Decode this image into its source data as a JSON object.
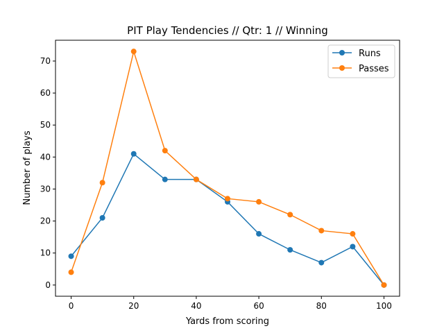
{
  "chart_data": {
    "type": "line",
    "title": "PIT Play Tendencies // Qtr: 1 // Winning",
    "xlabel": "Yards from scoring",
    "ylabel": "Number of plays",
    "x": [
      0,
      10,
      20,
      30,
      40,
      50,
      60,
      70,
      80,
      90,
      100
    ],
    "xlim": [
      -5,
      105
    ],
    "ylim": [
      -3.5,
      76.5
    ],
    "xticks": [
      0,
      20,
      40,
      60,
      80,
      100
    ],
    "yticks": [
      0,
      10,
      20,
      30,
      40,
      50,
      60,
      70
    ],
    "grid": false,
    "legend_position": "top-right",
    "series": [
      {
        "name": "Runs",
        "color": "#1f77b4",
        "marker": "circle",
        "values": [
          9,
          21,
          41,
          33,
          33,
          26,
          16,
          11,
          7,
          12,
          0
        ]
      },
      {
        "name": "Passes",
        "color": "#ff7f0e",
        "marker": "circle",
        "values": [
          4,
          32,
          73,
          42,
          33,
          27,
          26,
          22,
          17,
          16,
          0
        ]
      }
    ]
  }
}
